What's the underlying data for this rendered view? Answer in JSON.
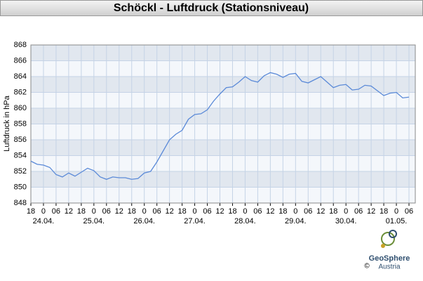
{
  "chart_data": {
    "type": "line",
    "title": "Schöckl - Luftdruck (Stationsniveau)",
    "y_label": "Luftdruck in hPa",
    "credit": "©",
    "logo_name": "GeoSphere",
    "logo_sub": "Austria",
    "x": [
      0,
      3,
      6,
      9,
      12,
      15,
      18,
      21,
      24,
      27,
      30,
      33,
      36,
      39,
      42,
      45,
      48,
      51,
      54,
      57,
      60,
      63,
      66,
      69,
      72,
      75,
      78,
      81,
      84,
      87,
      90,
      93,
      96,
      99,
      102,
      105,
      108,
      111,
      114,
      117,
      120,
      123,
      126,
      129,
      132,
      135,
      138,
      141,
      144,
      147,
      150,
      153,
      156,
      159,
      162,
      165,
      168,
      171,
      174,
      177,
      180
    ],
    "series": [
      {
        "name": "Luftdruck",
        "color": "#5b8ad8",
        "values": [
          853.3,
          852.9,
          852.8,
          852.5,
          851.6,
          851.3,
          851.8,
          851.4,
          851.9,
          852.4,
          852.1,
          851.3,
          851.0,
          851.3,
          851.2,
          851.2,
          851.0,
          851.1,
          851.8,
          852.0,
          853.2,
          854.6,
          856.0,
          856.7,
          857.2,
          858.6,
          859.2,
          859.3,
          859.8,
          860.9,
          861.8,
          862.6,
          862.7,
          863.3,
          864.0,
          863.5,
          863.3,
          864.1,
          864.5,
          864.3,
          863.9,
          864.3,
          864.4,
          863.4,
          863.2,
          863.6,
          864.0,
          863.3,
          862.6,
          862.9,
          863.0,
          862.3,
          862.4,
          862.9,
          862.8,
          862.2,
          861.6,
          861.9,
          862.0,
          861.3,
          861.4
        ]
      }
    ],
    "xlim": [
      0,
      183
    ],
    "xticks": [
      {
        "value": 0,
        "label": "18"
      },
      {
        "value": 6,
        "label": "0"
      },
      {
        "value": 12,
        "label": "06"
      },
      {
        "value": 18,
        "label": "12"
      },
      {
        "value": 24,
        "label": "18"
      },
      {
        "value": 30,
        "label": "0"
      },
      {
        "value": 36,
        "label": "06"
      },
      {
        "value": 42,
        "label": "12"
      },
      {
        "value": 48,
        "label": "18"
      },
      {
        "value": 54,
        "label": "0"
      },
      {
        "value": 60,
        "label": "06"
      },
      {
        "value": 66,
        "label": "12"
      },
      {
        "value": 72,
        "label": "18"
      },
      {
        "value": 78,
        "label": "0"
      },
      {
        "value": 84,
        "label": "06"
      },
      {
        "value": 90,
        "label": "12"
      },
      {
        "value": 96,
        "label": "18"
      },
      {
        "value": 102,
        "label": "0"
      },
      {
        "value": 108,
        "label": "06"
      },
      {
        "value": 114,
        "label": "12"
      },
      {
        "value": 120,
        "label": "18"
      },
      {
        "value": 126,
        "label": "0"
      },
      {
        "value": 132,
        "label": "06"
      },
      {
        "value": 138,
        "label": "12"
      },
      {
        "value": 144,
        "label": "18"
      },
      {
        "value": 150,
        "label": "0"
      },
      {
        "value": 156,
        "label": "06"
      },
      {
        "value": 162,
        "label": "12"
      },
      {
        "value": 168,
        "label": "18"
      },
      {
        "value": 174,
        "label": "0"
      },
      {
        "value": 180,
        "label": "06"
      }
    ],
    "xday_labels": [
      {
        "value": 6,
        "label": "24.04."
      },
      {
        "value": 30,
        "label": "25.04."
      },
      {
        "value": 54,
        "label": "26.04."
      },
      {
        "value": 78,
        "label": "27.04."
      },
      {
        "value": 102,
        "label": "28.04."
      },
      {
        "value": 126,
        "label": "29.04."
      },
      {
        "value": 150,
        "label": "30.04."
      },
      {
        "value": 174,
        "label": "01.05."
      }
    ],
    "ylim": [
      848,
      868
    ],
    "yticks": [
      848,
      850,
      852,
      854,
      856,
      858,
      860,
      862,
      864,
      866,
      868
    ],
    "grid": true
  }
}
